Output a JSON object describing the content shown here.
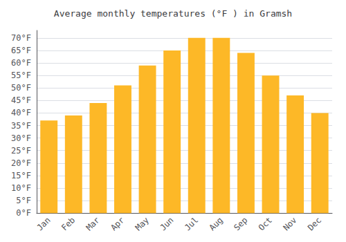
{
  "chart_data": {
    "type": "bar",
    "title": "Average monthly temperatures (°F ) in Gramsh",
    "categories": [
      "Jan",
      "Feb",
      "Mar",
      "Apr",
      "May",
      "Jun",
      "Jul",
      "Aug",
      "Sep",
      "Oct",
      "Nov",
      "Dec"
    ],
    "values": [
      37,
      39,
      44,
      51,
      59,
      65,
      70,
      70,
      64,
      55,
      47,
      40
    ],
    "color": "#FDB827",
    "ylim": [
      0,
      73
    ],
    "yticks": [
      {
        "value": 0,
        "label": "0°F"
      },
      {
        "value": 5,
        "label": "5°F"
      },
      {
        "value": 10,
        "label": "10°F"
      },
      {
        "value": 15,
        "label": "15°F"
      },
      {
        "value": 20,
        "label": "20°F"
      },
      {
        "value": 25,
        "label": "25°F"
      },
      {
        "value": 30,
        "label": "30°F"
      },
      {
        "value": 35,
        "label": "35°F"
      },
      {
        "value": 40,
        "label": "40°F"
      },
      {
        "value": 45,
        "label": "45°F"
      },
      {
        "value": 50,
        "label": "50°F"
      },
      {
        "value": 55,
        "label": "55°F"
      },
      {
        "value": 60,
        "label": "60°F"
      },
      {
        "value": 65,
        "label": "65°F"
      },
      {
        "value": 70,
        "label": "70°F"
      }
    ],
    "grid": true
  }
}
